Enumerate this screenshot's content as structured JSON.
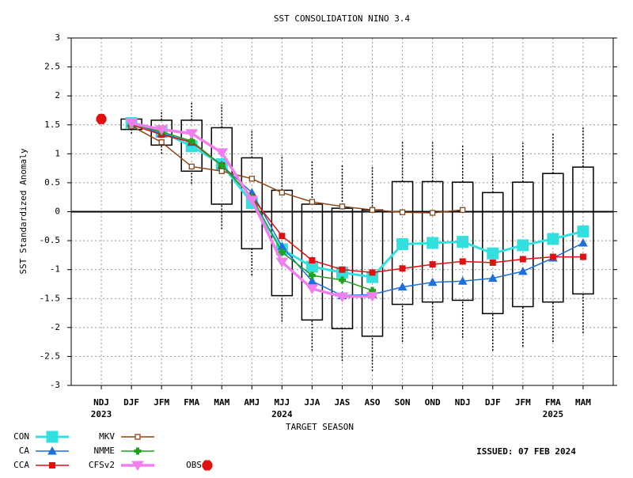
{
  "chart_data": {
    "type": "box-line",
    "title": "SST CONSOLIDATION NINO 3.4",
    "y_label": "SST Standardized Anomaly",
    "x_label": "TARGET SEASON",
    "issued": "ISSUED: 07 FEB 2024",
    "categories": [
      "NDJ",
      "DJF",
      "JFM",
      "FMA",
      "MAM",
      "AMJ",
      "MJJ",
      "JJA",
      "JAS",
      "ASO",
      "SON",
      "OND",
      "NDJ",
      "DJF",
      "JFM",
      "FMA",
      "MAM"
    ],
    "category_sublabels": [
      "2023",
      null,
      null,
      null,
      null,
      null,
      "2024",
      null,
      null,
      null,
      null,
      null,
      null,
      null,
      null,
      "2025",
      null
    ],
    "ylim": [
      -3,
      3
    ],
    "yticks": [
      3,
      2.5,
      2,
      1.5,
      1,
      0.5,
      0,
      -0.5,
      -1,
      -1.5,
      -2,
      -2.5,
      -3
    ],
    "grid": true,
    "boxes": {
      "low": [
        null,
        1.35,
        1.0,
        0.48,
        -0.3,
        -1.1,
        -1.9,
        -2.4,
        -2.58,
        -2.75,
        -2.25,
        -2.2,
        -2.18,
        -2.4,
        -2.33,
        -2.25,
        -2.1
      ],
      "q1": [
        null,
        1.42,
        1.15,
        0.7,
        0.13,
        -0.64,
        -1.45,
        -1.87,
        -2.02,
        -2.15,
        -1.6,
        -1.56,
        -1.53,
        -1.76,
        -1.64,
        -1.56,
        -1.42
      ],
      "q3": [
        null,
        1.6,
        1.58,
        1.58,
        1.45,
        0.93,
        0.37,
        0.13,
        0.06,
        0.03,
        0.52,
        0.52,
        0.51,
        0.33,
        0.51,
        0.66,
        0.77
      ],
      "high": [
        null,
        1.65,
        1.75,
        1.88,
        1.85,
        1.42,
        0.98,
        0.87,
        0.8,
        0.78,
        1.22,
        1.2,
        1.16,
        1.0,
        1.19,
        1.37,
        1.48
      ]
    },
    "series": [
      {
        "name": "CON",
        "color": "#33e0e0",
        "marker": "big-square",
        "line_width": 3,
        "values": [
          null,
          1.53,
          1.38,
          1.13,
          0.82,
          0.15,
          -0.65,
          -0.95,
          -1.05,
          -1.13,
          -0.56,
          -0.54,
          -0.52,
          -0.72,
          -0.58,
          -0.47,
          -0.34
        ]
      },
      {
        "name": "CA",
        "color": "#1f6fdc",
        "marker": "triangle",
        "line_width": 1.5,
        "values": [
          null,
          1.53,
          1.35,
          1.2,
          0.8,
          0.33,
          -0.6,
          -1.2,
          -1.45,
          -1.43,
          -1.3,
          -1.22,
          -1.2,
          -1.15,
          -1.03,
          -0.8,
          -0.54
        ]
      },
      {
        "name": "CCA",
        "color": "#e01010",
        "marker": "square",
        "line_width": 1.5,
        "values": [
          null,
          1.5,
          1.33,
          1.2,
          0.8,
          0.25,
          -0.42,
          -0.84,
          -1.0,
          -1.05,
          -0.98,
          -0.91,
          -0.86,
          -0.88,
          -0.82,
          -0.78,
          -0.78
        ]
      },
      {
        "name": "MKV",
        "color": "#8b4513",
        "marker": "open-square",
        "line_width": 1.5,
        "values": [
          null,
          1.48,
          1.2,
          0.78,
          0.7,
          0.57,
          0.33,
          0.17,
          0.09,
          0.03,
          -0.01,
          -0.02,
          0.03,
          null,
          null,
          null,
          null
        ]
      },
      {
        "name": "NMME",
        "color": "#20a020",
        "marker": "cross",
        "line_width": 1.5,
        "values": [
          null,
          1.52,
          1.38,
          1.22,
          0.8,
          0.25,
          -0.7,
          -1.1,
          -1.18,
          -1.36,
          null,
          null,
          null,
          null,
          null,
          null,
          null
        ]
      },
      {
        "name": "CFSv2",
        "color": "#f080f0",
        "marker": "down-triangle",
        "line_width": 3.5,
        "values": [
          null,
          1.53,
          1.42,
          1.35,
          1.02,
          0.2,
          -0.87,
          -1.33,
          -1.47,
          -1.46,
          null,
          null,
          null,
          null,
          null,
          null,
          null
        ]
      },
      {
        "name": "OBS",
        "color": "#e01010",
        "marker": "hexagon",
        "line_width": 0,
        "values": [
          1.6,
          null,
          null,
          null,
          null,
          null,
          null,
          null,
          null,
          null,
          null,
          null,
          null,
          null,
          null,
          null,
          null
        ]
      }
    ]
  }
}
